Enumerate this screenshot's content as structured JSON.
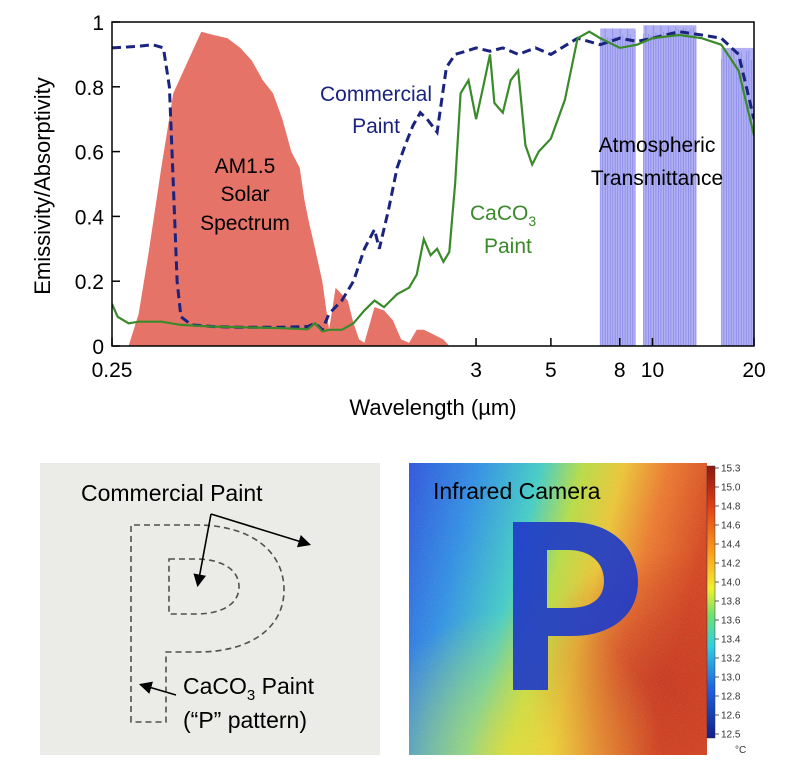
{
  "chart_data": {
    "type": "line",
    "xlabel": "Wavelength (µm)",
    "ylabel": "Emissivity/Absorptivity",
    "x_scale": "log",
    "xlim": [
      0.25,
      20
    ],
    "ylim": [
      0,
      1
    ],
    "x_ticks": [
      {
        "value": 0.25,
        "label": "0.25"
      },
      {
        "value": 3,
        "label": "3"
      },
      {
        "value": 5,
        "label": "5"
      },
      {
        "value": 8,
        "label": "8"
      },
      {
        "value": 10,
        "label": "10"
      },
      {
        "value": 20,
        "label": "20"
      }
    ],
    "y_ticks": [
      {
        "value": 0,
        "label": "0"
      },
      {
        "value": 0.2,
        "label": "0.2"
      },
      {
        "value": 0.4,
        "label": "0.4"
      },
      {
        "value": 0.6,
        "label": "0.6"
      },
      {
        "value": 0.8,
        "label": "0.8"
      },
      {
        "value": 1,
        "label": "1"
      }
    ],
    "series": [
      {
        "name": "Commercial Paint",
        "color": "#1a237e",
        "style": "dashed",
        "points": [
          [
            0.25,
            0.92
          ],
          [
            0.3,
            0.925
          ],
          [
            0.33,
            0.93
          ],
          [
            0.355,
            0.92
          ],
          [
            0.37,
            0.8
          ],
          [
            0.38,
            0.5
          ],
          [
            0.39,
            0.2
          ],
          [
            0.4,
            0.09
          ],
          [
            0.43,
            0.065
          ],
          [
            0.5,
            0.06
          ],
          [
            0.6,
            0.058
          ],
          [
            0.8,
            0.058
          ],
          [
            0.95,
            0.06
          ],
          [
            1.0,
            0.07
          ],
          [
            1.05,
            0.05
          ],
          [
            1.1,
            0.1
          ],
          [
            1.2,
            0.14
          ],
          [
            1.3,
            0.2
          ],
          [
            1.4,
            0.3
          ],
          [
            1.5,
            0.36
          ],
          [
            1.55,
            0.3
          ],
          [
            1.65,
            0.42
          ],
          [
            1.75,
            0.55
          ],
          [
            1.85,
            0.62
          ],
          [
            1.95,
            0.68
          ],
          [
            2.05,
            0.72
          ],
          [
            2.15,
            0.7
          ],
          [
            2.3,
            0.66
          ],
          [
            2.45,
            0.86
          ],
          [
            2.6,
            0.9
          ],
          [
            2.8,
            0.91
          ],
          [
            3.0,
            0.92
          ],
          [
            3.3,
            0.91
          ],
          [
            3.6,
            0.92
          ],
          [
            4.0,
            0.9
          ],
          [
            4.5,
            0.92
          ],
          [
            5.0,
            0.9
          ],
          [
            6.0,
            0.95
          ],
          [
            7.0,
            0.93
          ],
          [
            8.0,
            0.95
          ],
          [
            9.0,
            0.94
          ],
          [
            10.0,
            0.95
          ],
          [
            12.0,
            0.97
          ],
          [
            14.0,
            0.96
          ],
          [
            16.0,
            0.95
          ],
          [
            18.0,
            0.9
          ],
          [
            20.0,
            0.7
          ]
        ]
      },
      {
        "name": "CaCO₃ Paint",
        "color": "#3a8a2a",
        "style": "solid",
        "points": [
          [
            0.25,
            0.13
          ],
          [
            0.26,
            0.09
          ],
          [
            0.28,
            0.07
          ],
          [
            0.3,
            0.075
          ],
          [
            0.35,
            0.075
          ],
          [
            0.4,
            0.065
          ],
          [
            0.5,
            0.06
          ],
          [
            0.6,
            0.058
          ],
          [
            0.8,
            0.055
          ],
          [
            0.95,
            0.052
          ],
          [
            1.0,
            0.07
          ],
          [
            1.05,
            0.045
          ],
          [
            1.1,
            0.05
          ],
          [
            1.2,
            0.05
          ],
          [
            1.3,
            0.07
          ],
          [
            1.4,
            0.11
          ],
          [
            1.5,
            0.14
          ],
          [
            1.6,
            0.12
          ],
          [
            1.75,
            0.16
          ],
          [
            1.9,
            0.18
          ],
          [
            2.0,
            0.22
          ],
          [
            2.1,
            0.33
          ],
          [
            2.2,
            0.28
          ],
          [
            2.3,
            0.3
          ],
          [
            2.4,
            0.26
          ],
          [
            2.5,
            0.29
          ],
          [
            2.6,
            0.5
          ],
          [
            2.7,
            0.78
          ],
          [
            2.85,
            0.82
          ],
          [
            3.0,
            0.7
          ],
          [
            3.15,
            0.8
          ],
          [
            3.3,
            0.9
          ],
          [
            3.4,
            0.75
          ],
          [
            3.6,
            0.72
          ],
          [
            3.8,
            0.82
          ],
          [
            4.0,
            0.85
          ],
          [
            4.2,
            0.62
          ],
          [
            4.4,
            0.56
          ],
          [
            4.6,
            0.6
          ],
          [
            5.0,
            0.64
          ],
          [
            5.5,
            0.76
          ],
          [
            6.0,
            0.95
          ],
          [
            6.5,
            0.97
          ],
          [
            7.0,
            0.95
          ],
          [
            8.0,
            0.92
          ],
          [
            9.0,
            0.93
          ],
          [
            10.0,
            0.95
          ],
          [
            12.0,
            0.96
          ],
          [
            14.0,
            0.95
          ],
          [
            16.0,
            0.93
          ],
          [
            18.0,
            0.85
          ],
          [
            20.0,
            0.65
          ]
        ]
      }
    ],
    "areas": [
      {
        "name": "AM1.5 Solar Spectrum",
        "color": "#e57368",
        "points": [
          [
            0.28,
            0.0
          ],
          [
            0.3,
            0.1
          ],
          [
            0.32,
            0.28
          ],
          [
            0.35,
            0.55
          ],
          [
            0.38,
            0.78
          ],
          [
            0.42,
            0.88
          ],
          [
            0.46,
            0.97
          ],
          [
            0.5,
            0.96
          ],
          [
            0.55,
            0.95
          ],
          [
            0.6,
            0.92
          ],
          [
            0.65,
            0.88
          ],
          [
            0.7,
            0.82
          ],
          [
            0.75,
            0.78
          ],
          [
            0.8,
            0.7
          ],
          [
            0.85,
            0.6
          ],
          [
            0.9,
            0.55
          ],
          [
            0.93,
            0.45
          ],
          [
            0.96,
            0.38
          ],
          [
            1.0,
            0.3
          ],
          [
            1.05,
            0.2
          ],
          [
            1.1,
            0.05
          ],
          [
            1.15,
            0.18
          ],
          [
            1.2,
            0.16
          ],
          [
            1.25,
            0.14
          ],
          [
            1.3,
            0.07
          ],
          [
            1.35,
            0.02
          ],
          [
            1.4,
            0.01
          ],
          [
            1.5,
            0.12
          ],
          [
            1.6,
            0.11
          ],
          [
            1.7,
            0.08
          ],
          [
            1.8,
            0.02
          ],
          [
            1.9,
            0.01
          ],
          [
            2.0,
            0.05
          ],
          [
            2.1,
            0.05
          ],
          [
            2.2,
            0.04
          ],
          [
            2.4,
            0.02
          ],
          [
            2.5,
            0.0
          ]
        ]
      },
      {
        "name": "Atmospheric Transmittance",
        "color": "#6f6fe8",
        "bands": [
          [
            7.0,
            8.9,
            0.98
          ],
          [
            9.4,
            13.5,
            0.99
          ],
          [
            16.0,
            20.0,
            0.92
          ]
        ]
      }
    ],
    "annotations": {
      "solar_lines": [
        "AM1.5",
        "Solar",
        "Spectrum"
      ],
      "commercial_lines": [
        "Commercial",
        "Paint"
      ],
      "atmos_lines": [
        "Atmospheric",
        "Transmittance"
      ],
      "caco3_prefix": "CaCO",
      "caco3_sub": "3",
      "caco3_line2": "Paint"
    }
  },
  "photo_panel": {
    "label_commercial": "Commercial Paint",
    "label_caco3_prefix": "CaCO",
    "label_caco3_sub": "3",
    "label_caco3_suffix": " Paint",
    "label_pattern": "(“P” pattern)"
  },
  "ir_panel": {
    "title": "Infrared Camera",
    "colorbar_ticks": [
      "15.3",
      "15.0",
      "14.8",
      "14.6",
      "14.4",
      "14.2",
      "14.0",
      "13.8",
      "13.6",
      "13.4",
      "13.2",
      "13.0",
      "12.8",
      "12.6",
      "12.5"
    ],
    "colorbar_unit": "°C",
    "letter": "P"
  },
  "colors": {
    "commercial": "#1a237e",
    "caco3": "#3a8a2a",
    "solar": "#e57368",
    "atmos": "#6f6fe8"
  }
}
